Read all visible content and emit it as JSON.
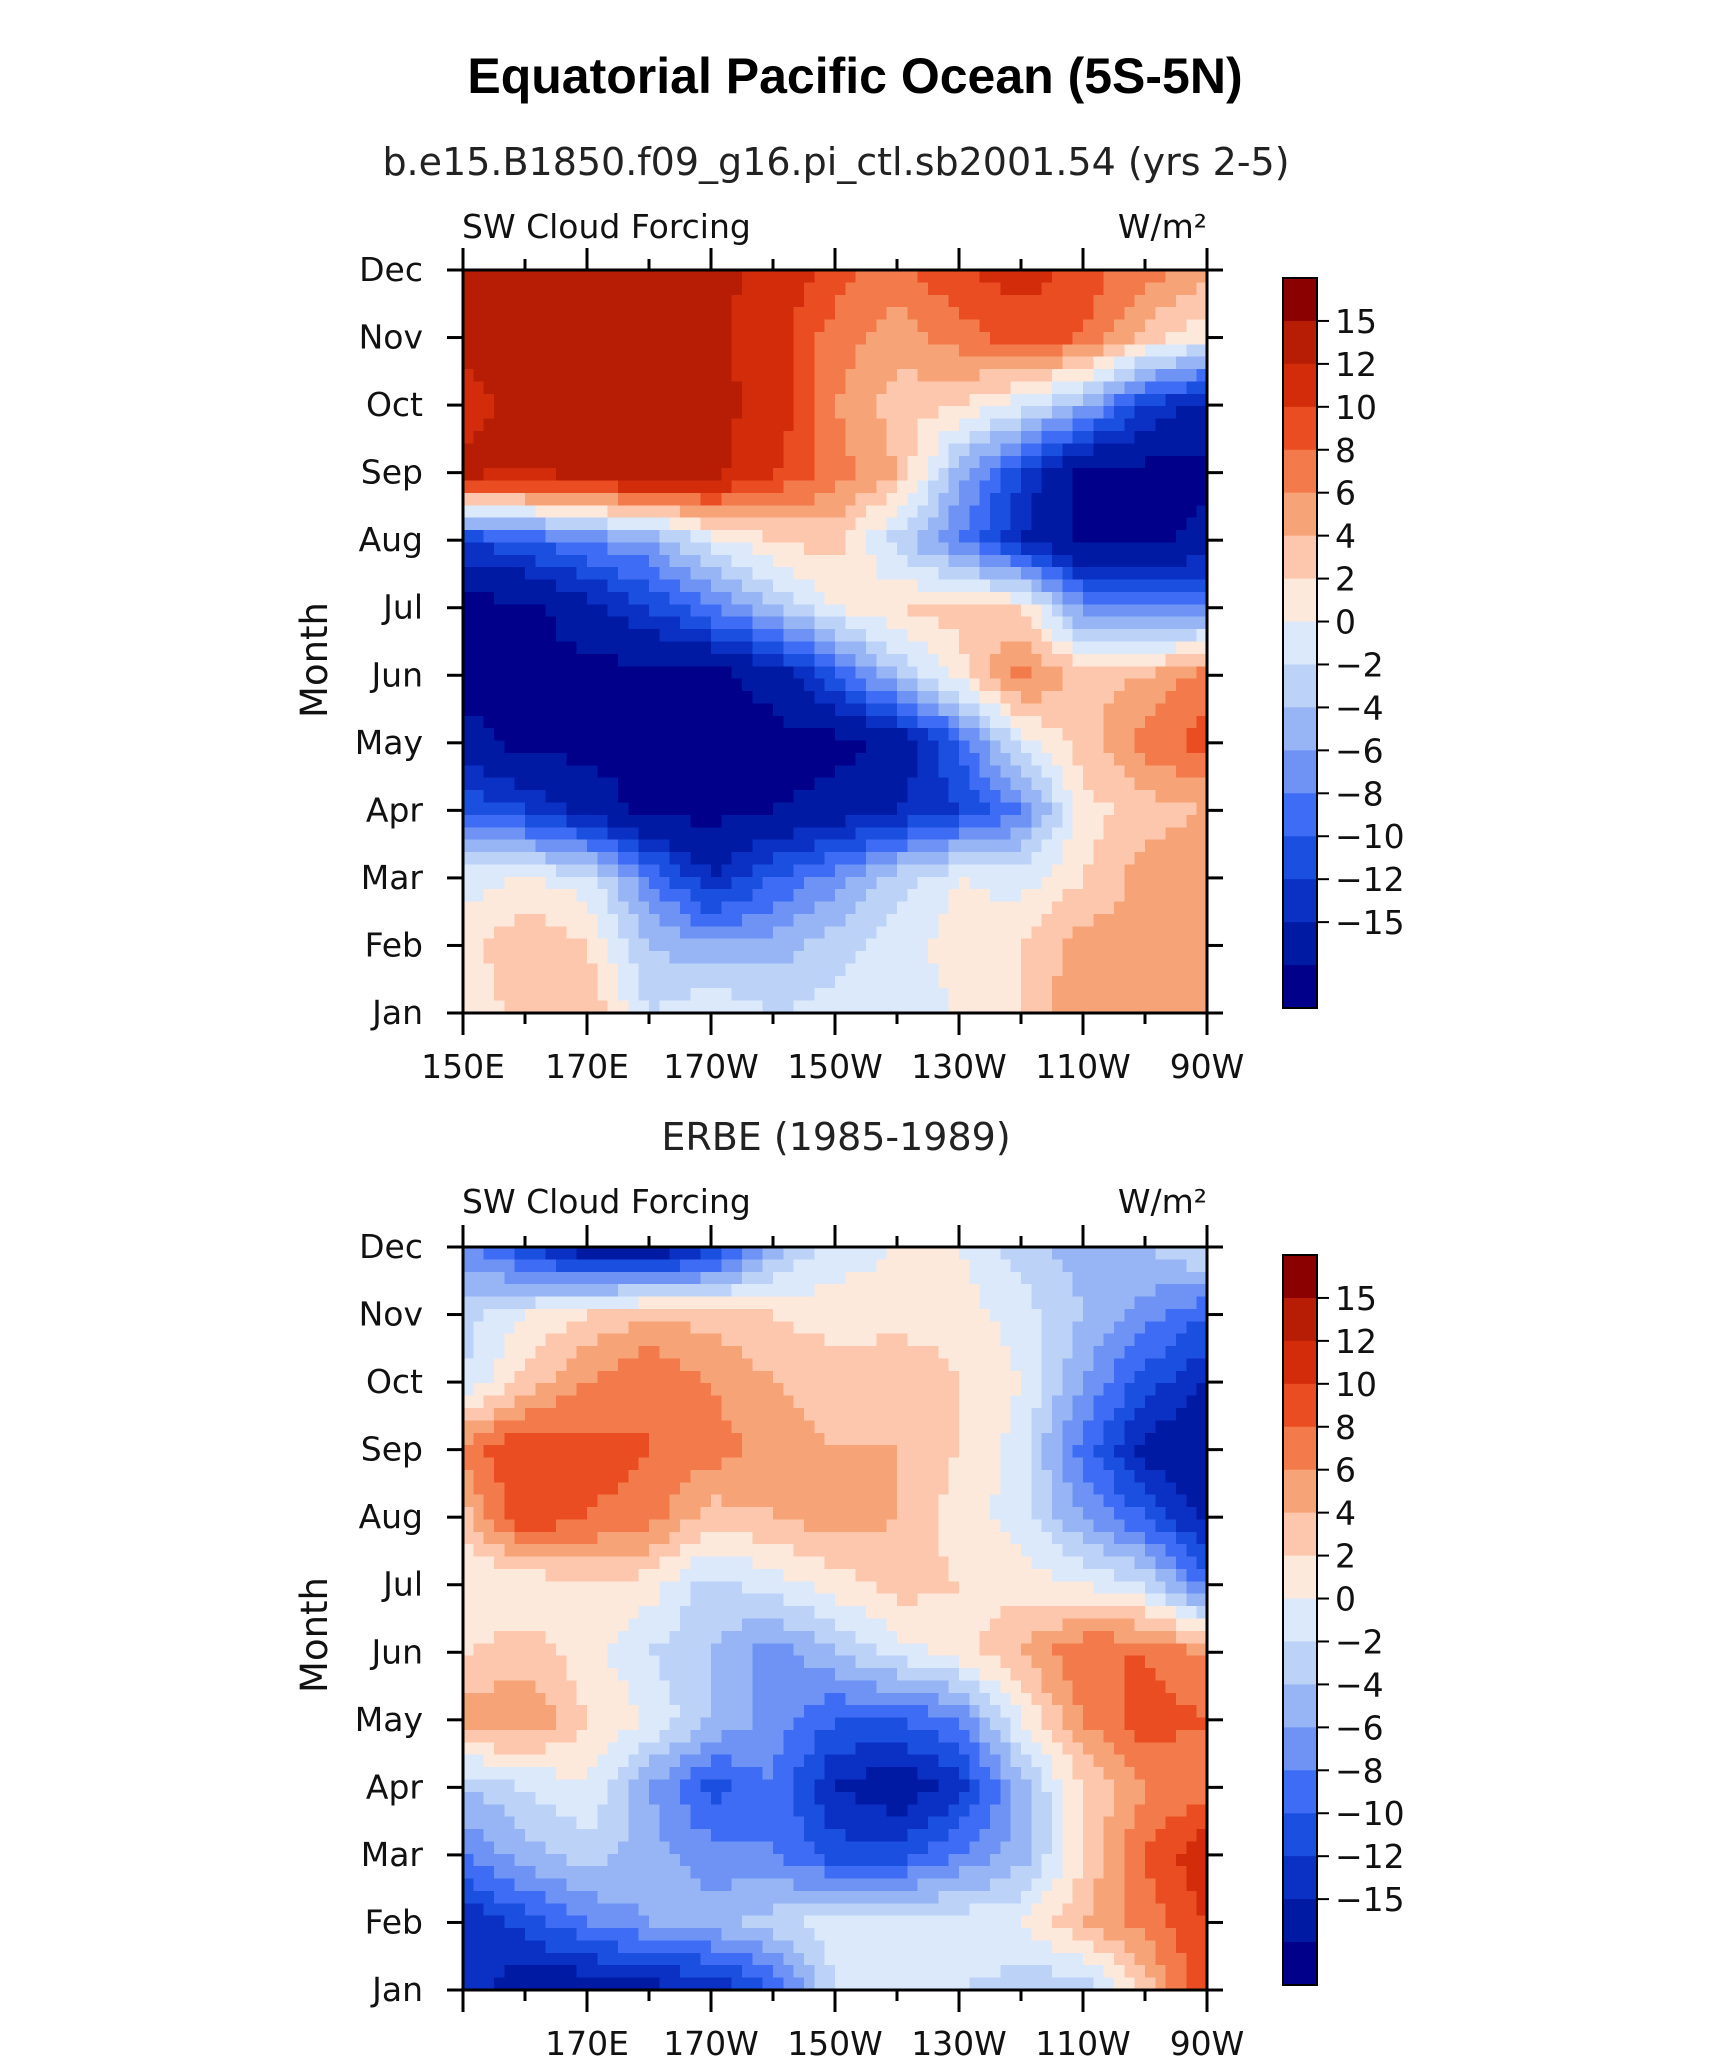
{
  "title": "Equatorial Pacific Ocean (5S-5N)",
  "chart_data": [
    {
      "type": "heatmap",
      "title": "b.e15.B1850.f09_g16.pi_ctl.sb2001.54 (yrs 2-5)",
      "left_label": "SW Cloud Forcing",
      "right_label": "W/m²",
      "ylabel": "Month",
      "xlabel": "",
      "x_range": [
        150,
        270
      ],
      "x_ticks": [
        {
          "value": 150,
          "label": "150E"
        },
        {
          "value": 170,
          "label": "170E"
        },
        {
          "value": 190,
          "label": "170W"
        },
        {
          "value": 210,
          "label": "150W"
        },
        {
          "value": 230,
          "label": "130W"
        },
        {
          "value": 250,
          "label": "110W"
        },
        {
          "value": 270,
          "label": "90W"
        }
      ],
      "y_labels": [
        "Jan",
        "Feb",
        "Mar",
        "Apr",
        "May",
        "Jun",
        "Jul",
        "Aug",
        "Sep",
        "Oct",
        "Nov",
        "Dec"
      ],
      "lon_grid": [
        150,
        160,
        170,
        180,
        190,
        200,
        210,
        220,
        230,
        240,
        250,
        260,
        270
      ],
      "values": [
        [
          2,
          5,
          6,
          0,
          2,
          0,
          1,
          1,
          2,
          4,
          8,
          7,
          8
        ],
        [
          3,
          6,
          4,
          -2,
          -4,
          -3,
          -1,
          1,
          3,
          4,
          7,
          6,
          8
        ],
        [
          1,
          2,
          1,
          -6,
          -12,
          -8,
          -5,
          -1,
          2,
          1,
          4,
          7,
          8
        ],
        [
          -8,
          -10,
          -13,
          -16,
          -16,
          -15,
          -14,
          -12,
          -10,
          -6,
          3,
          5,
          6
        ],
        [
          -14,
          -16,
          -16,
          -16,
          -16,
          -16,
          -16,
          -14,
          -8,
          1,
          5,
          9,
          11
        ],
        [
          -16,
          -16,
          -16,
          -16,
          -16,
          -14,
          -8,
          -2,
          3,
          9,
          5,
          6,
          9
        ],
        [
          -16,
          -16,
          -13,
          -10,
          -6,
          -2,
          2,
          4,
          5,
          4,
          -5,
          -6,
          -6
        ],
        [
          -10,
          -8,
          -6,
          -4,
          1,
          4,
          5,
          -1,
          -6,
          -12,
          -16,
          -16,
          -14
        ],
        [
          16,
          15,
          16,
          17,
          16,
          12,
          9,
          6,
          -3,
          -10,
          -16,
          -16,
          -16
        ],
        [
          14,
          16,
          15,
          16,
          16,
          14,
          8,
          5,
          4,
          1,
          -3,
          -10,
          -13
        ],
        [
          16,
          16,
          16,
          16,
          16,
          13,
          9,
          7,
          9,
          11,
          10,
          5,
          2
        ],
        [
          16,
          16,
          16,
          16,
          16,
          14,
          11,
          9,
          12,
          13,
          11,
          9,
          7
        ]
      ]
    },
    {
      "type": "heatmap",
      "title": "ERBE (1985-1989)",
      "left_label": "SW Cloud Forcing",
      "right_label": "W/m²",
      "ylabel": "Month",
      "xlabel": "",
      "x_range": [
        150,
        270
      ],
      "x_ticks": [
        {
          "value": 170,
          "label": "170E"
        },
        {
          "value": 190,
          "label": "170W"
        },
        {
          "value": 210,
          "label": "150W"
        },
        {
          "value": 230,
          "label": "130W"
        },
        {
          "value": 250,
          "label": "110W"
        },
        {
          "value": 270,
          "label": "90W"
        }
      ],
      "y_labels": [
        "Jan",
        "Feb",
        "Mar",
        "Apr",
        "May",
        "Jun",
        "Jul",
        "Aug",
        "Sep",
        "Oct",
        "Nov",
        "Dec"
      ],
      "lon_grid": [
        150,
        160,
        170,
        180,
        190,
        200,
        210,
        220,
        230,
        240,
        250,
        260,
        270
      ],
      "values": [
        [
          -10,
          -14,
          -14,
          -13,
          -12,
          -8,
          0,
          1,
          0,
          -1,
          -2,
          5,
          12
        ],
        [
          -12,
          -9,
          -6,
          -4,
          -3,
          -1,
          1,
          1,
          1,
          2,
          6,
          9,
          12
        ],
        [
          -6,
          -3,
          -1,
          -3,
          -5,
          -6,
          -9,
          -9,
          -6,
          -3,
          4,
          10,
          14
        ],
        [
          -2,
          0,
          2,
          -4,
          -9,
          -6,
          -12,
          -14,
          -11,
          -3,
          4,
          8,
          9
        ],
        [
          7,
          8,
          4,
          2,
          -2,
          -5,
          -8,
          -8,
          -6,
          2,
          8,
          11,
          10
        ],
        [
          4,
          5,
          3,
          0,
          -2,
          -5,
          -2,
          1,
          3,
          6,
          10,
          10,
          8
        ],
        [
          2,
          2,
          4,
          3,
          -1,
          1,
          3,
          5,
          4,
          3,
          2,
          0,
          -7
        ],
        [
          5,
          12,
          10,
          9,
          5,
          6,
          7,
          6,
          3,
          1,
          -4,
          -8,
          -13
        ],
        [
          9,
          12,
          11,
          10,
          9,
          7,
          6,
          6,
          4,
          1,
          -7,
          -13,
          -15
        ],
        [
          0,
          5,
          8,
          10,
          8,
          6,
          5,
          6,
          4,
          2,
          -4,
          -9,
          -12
        ],
        [
          -1,
          2,
          4,
          6,
          5,
          4,
          3,
          3,
          3,
          1,
          -2,
          -5,
          -8
        ],
        [
          -5,
          -10,
          -14,
          -15,
          -11,
          -3,
          1,
          2,
          2,
          -1,
          -3,
          -2,
          1
        ]
      ]
    }
  ],
  "colorbar": {
    "labels": [
      "15",
      "12",
      "10",
      "8",
      "6",
      "4",
      "2",
      "0",
      "−2",
      "−4",
      "−6",
      "−8",
      "−10",
      "−12",
      "−15"
    ],
    "bin_edges": [
      -15,
      -12,
      -10,
      -8,
      -6,
      -4,
      -2,
      0,
      2,
      4,
      6,
      8,
      10,
      12,
      15
    ],
    "colors": [
      "#00008b",
      "#001aa3",
      "#0a30c4",
      "#1a4fe0",
      "#3f6cf5",
      "#6e93f5",
      "#97b4f5",
      "#bcd2f7",
      "#dce9fb",
      "#fde9dc",
      "#fcc7ac",
      "#f7a378",
      "#f37a4a",
      "#ea4d21",
      "#d22c0b",
      "#b71c05",
      "#8b0000"
    ]
  }
}
